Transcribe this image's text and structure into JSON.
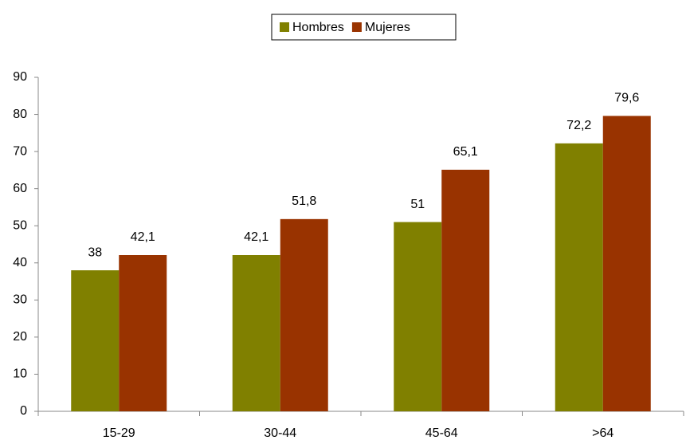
{
  "chart_data": {
    "type": "bar",
    "categories": [
      "15-29",
      "30-44",
      "45-64",
      ">64"
    ],
    "series": [
      {
        "name": "Hombres",
        "color": "#808000",
        "values": [
          38,
          42.1,
          51,
          72.2
        ],
        "value_labels": [
          "38",
          "42,1",
          "51",
          "72,2"
        ]
      },
      {
        "name": "Mujeres",
        "color": "#993300",
        "values": [
          42.1,
          51.8,
          65.1,
          79.6
        ],
        "value_labels": [
          "42,1",
          "51,8",
          "65,1",
          "79,6"
        ]
      }
    ],
    "ylim": [
      0,
      90
    ],
    "yticks": [
      0,
      10,
      20,
      30,
      40,
      50,
      60,
      70,
      80,
      90
    ],
    "grid": false,
    "legend": "top"
  }
}
